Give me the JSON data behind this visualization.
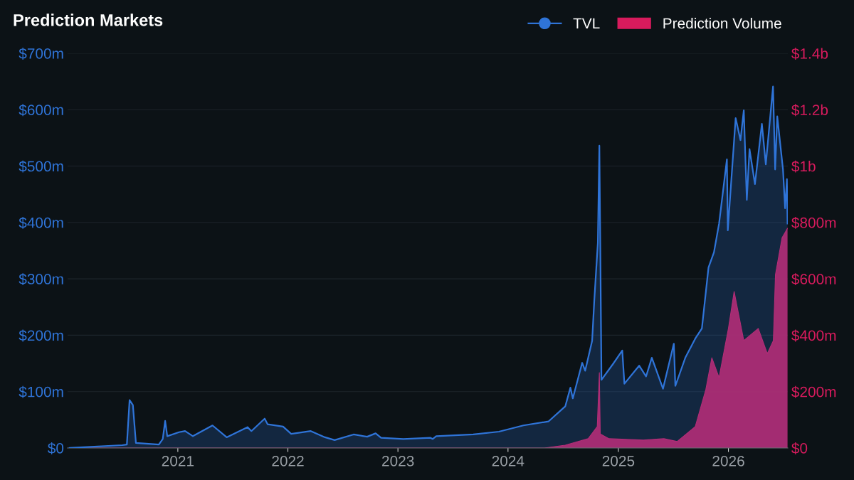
{
  "chart_data": {
    "type": "area",
    "title": "Prediction Markets",
    "xlim": [
      "2020-01-01",
      "2026-07-17"
    ],
    "xticks": [
      {
        "value": "2021-01-01",
        "label": "2021"
      },
      {
        "value": "2022-01-01",
        "label": "2022"
      },
      {
        "value": "2023-01-01",
        "label": "2023"
      },
      {
        "value": "2024-01-01",
        "label": "2024"
      },
      {
        "value": "2025-01-01",
        "label": "2025"
      },
      {
        "value": "2026-01-01",
        "label": "2026"
      }
    ],
    "ylim": [
      0,
      700
    ],
    "yticks": [
      {
        "value": 0,
        "label": "$0"
      },
      {
        "value": 100,
        "label": "$100m"
      },
      {
        "value": 200,
        "label": "$200m"
      },
      {
        "value": 300,
        "label": "$300m"
      },
      {
        "value": 400,
        "label": "$400m"
      },
      {
        "value": 500,
        "label": "$500m"
      },
      {
        "value": 600,
        "label": "$600m"
      },
      {
        "value": 700,
        "label": "$700m"
      }
    ],
    "y2lim": [
      0,
      1400000000
    ],
    "y2ticks": [
      {
        "value": 0,
        "label": "$0"
      },
      {
        "value": 200000000,
        "label": "$200m"
      },
      {
        "value": 400000000,
        "label": "$400m"
      },
      {
        "value": 600000000,
        "label": "$600m"
      },
      {
        "value": 800000000,
        "label": "$800m"
      },
      {
        "value": 1000000000,
        "label": "$1b"
      },
      {
        "value": 1200000000,
        "label": "$1.2b"
      },
      {
        "value": 1400000000,
        "label": "$1.4b"
      }
    ],
    "grid": "y",
    "legend": "top right",
    "series": [
      {
        "name": "TVL",
        "type": "line",
        "color": "#2f74d8",
        "x": [
          "2020-01-08",
          "2020-07-01",
          "2020-07-16",
          "2020-07-25",
          "2020-08-05",
          "2020-08-15",
          "2020-10-30",
          "2020-11-12",
          "2020-11-20",
          "2020-11-27",
          "2021-01-05",
          "2021-01-25",
          "2021-02-20",
          "2021-04-26",
          "2021-06-12",
          "2021-08-20",
          "2021-09-02",
          "2021-10-16",
          "2021-10-26",
          "2021-12-16",
          "2022-01-12",
          "2022-03-18",
          "2022-05-04",
          "2022-06-05",
          "2022-08-07",
          "2022-09-21",
          "2022-10-19",
          "2022-11-06",
          "2023-01-19",
          "2023-04-19",
          "2023-04-26",
          "2023-05-08",
          "2023-09-08",
          "2023-12-02",
          "2024-02-21",
          "2024-05-14",
          "2024-07-09",
          "2024-07-26",
          "2024-08-03",
          "2024-09-03",
          "2024-09-13",
          "2024-10-06",
          "2024-10-13",
          "2024-10-25",
          "2024-10-30",
          "2024-11-02",
          "2024-11-06",
          "2024-12-17",
          "2025-01-14",
          "2025-01-21",
          "2025-03-11",
          "2025-04-03",
          "2025-04-22",
          "2025-05-29",
          "2025-07-04",
          "2025-07-09",
          "2025-08-11",
          "2025-09-13",
          "2025-10-05",
          "2025-10-27",
          "2025-11-14",
          "2025-12-01",
          "2025-12-27",
          "2025-12-30",
          "2026-01-25",
          "2026-02-10",
          "2026-02-21",
          "2026-03-03",
          "2026-03-12",
          "2026-03-30",
          "2026-04-22",
          "2026-05-05",
          "2026-05-29",
          "2026-06-05",
          "2026-06-12",
          "2026-07-01",
          "2026-07-08",
          "2026-07-14",
          "2026-07-16"
        ],
        "values": [
          0,
          5,
          6,
          85,
          76,
          9,
          6,
          16,
          48,
          21,
          28,
          30,
          21,
          40,
          19,
          37,
          30,
          52,
          42,
          38,
          25,
          30,
          19,
          14,
          24,
          20,
          26,
          18,
          16,
          18,
          16,
          21,
          24,
          29,
          40,
          47,
          74,
          107,
          88,
          151,
          137,
          190,
          260,
          364,
          536,
          364,
          121,
          151,
          173,
          114,
          146,
          127,
          160,
          105,
          185,
          110,
          160,
          194,
          212,
          320,
          347,
          398,
          512,
          386,
          585,
          546,
          599,
          440,
          530,
          468,
          575,
          503,
          641,
          494,
          588,
          494,
          425,
          477,
          398
        ]
      },
      {
        "name": "Prediction Volume",
        "type": "area",
        "axis": "y2",
        "color": "#d81b5d",
        "x": [
          "2020-01-08",
          "2024-05-01",
          "2024-07-09",
          "2024-09-23",
          "2024-10-23",
          "2024-10-30",
          "2024-11-02",
          "2024-12-01",
          "2025-03-25",
          "2025-06-01",
          "2025-07-15",
          "2025-09-13",
          "2025-10-18",
          "2025-11-07",
          "2025-12-01",
          "2026-01-01",
          "2026-01-20",
          "2026-02-21",
          "2026-04-10",
          "2026-05-10",
          "2026-05-30",
          "2026-06-06",
          "2026-06-28",
          "2026-07-12",
          "2026-07-16"
        ],
        "values": [
          0,
          0,
          10000000,
          33000000,
          76000000,
          267000000,
          50000000,
          33000000,
          28000000,
          33000000,
          23000000,
          76000000,
          207000000,
          320000000,
          250000000,
          424000000,
          555000000,
          381000000,
          424000000,
          335000000,
          381000000,
          615000000,
          746000000,
          772000000,
          779000000
        ]
      }
    ]
  }
}
